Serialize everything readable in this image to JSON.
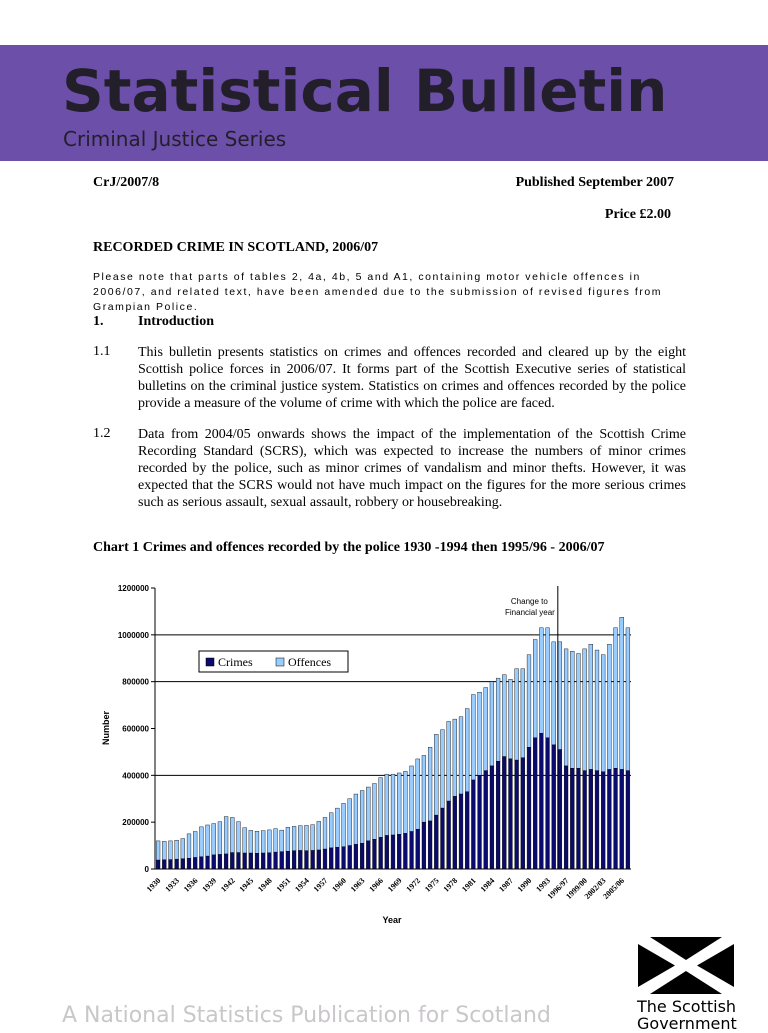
{
  "header": {
    "title": "Statistical Bulletin",
    "subtitle": "Criminal Justice Series",
    "banner_color": "#6b4fa8"
  },
  "meta": {
    "ref": "CrJ/2007/8",
    "published": "Published September 2007",
    "price": "Price £2.00"
  },
  "document": {
    "heading": "RECORDED CRIME IN SCOTLAND, 2006/07",
    "note": "Please note that parts of tables 2, 4a, 4b, 5 and A1, containing motor vehicle offences in 2006/07, and related text, have been amended due to the submission of revised figures from Grampian Police.",
    "section": {
      "number": "1.",
      "title": "Introduction"
    },
    "paragraphs": [
      {
        "number": "1.1",
        "text": "This bulletin presents statistics on crimes and offences recorded and cleared up by the eight Scottish police forces in 2006/07.  It forms part of the Scottish Executive series of statistical bulletins on the criminal justice system.  Statistics on crimes and offences recorded by the police provide a measure of the volume of crime with which the police are faced."
      },
      {
        "number": "1.2",
        "text": "Data from 2004/05 onwards shows the impact of the implementation of the Scottish Crime Recording Standard (SCRS), which was expected to increase the numbers of minor crimes recorded by the police, such as minor crimes of vandalism and minor thefts.  However, it was expected that the SCRS would not have much impact on the figures for the more serious crimes such as serious assault, sexual assault, robbery or housebreaking."
      }
    ],
    "chart_caption": "Chart 1   Crimes and offences recorded by the police 1930 -1994 then 1995/96 - 2006/07"
  },
  "chart_data": {
    "type": "bar",
    "stacked": true,
    "xlabel": "Year",
    "ylabel": "Number",
    "ylim": [
      0,
      1200000
    ],
    "yticks": [
      0,
      200000,
      400000,
      600000,
      800000,
      1000000,
      1200000
    ],
    "gridlines": [
      400000,
      800000,
      1000000
    ],
    "legend_position": "upper-left",
    "annotation": "Change to Financial year",
    "annotation_after": "1994",
    "x_tick_labels": [
      "1930",
      "1933",
      "1936",
      "1939",
      "1942",
      "1945",
      "1948",
      "1951",
      "1954",
      "1957",
      "1960",
      "1963",
      "1966",
      "1969",
      "1972",
      "1975",
      "1978",
      "1981",
      "1984",
      "1987",
      "1990",
      "1993",
      "1996/97",
      "1999/00",
      "2002/03",
      "2005/06"
    ],
    "categories": [
      "1930",
      "1931",
      "1932",
      "1933",
      "1934",
      "1935",
      "1936",
      "1937",
      "1938",
      "1939",
      "1940",
      "1941",
      "1942",
      "1943",
      "1944",
      "1945",
      "1946",
      "1947",
      "1948",
      "1949",
      "1950",
      "1951",
      "1952",
      "1953",
      "1954",
      "1955",
      "1956",
      "1957",
      "1958",
      "1959",
      "1960",
      "1961",
      "1962",
      "1963",
      "1964",
      "1965",
      "1966",
      "1967",
      "1968",
      "1969",
      "1970",
      "1971",
      "1972",
      "1973",
      "1974",
      "1975",
      "1976",
      "1977",
      "1978",
      "1979",
      "1980",
      "1981",
      "1982",
      "1983",
      "1984",
      "1985",
      "1986",
      "1987",
      "1988",
      "1989",
      "1990",
      "1991",
      "1992",
      "1993",
      "1994",
      "1995/96",
      "1996/97",
      "1997/98",
      "1998/99",
      "1999/00",
      "2000/01",
      "2001/02",
      "2002/03",
      "2003/04",
      "2004/05",
      "2005/06",
      "2006/07"
    ],
    "series": [
      {
        "name": "Crimes",
        "color": "#0b0b6e",
        "values": [
          38000,
          39000,
          40000,
          42000,
          44000,
          46000,
          49000,
          52000,
          55000,
          60000,
          62000,
          64000,
          70000,
          70000,
          68000,
          68000,
          67000,
          68000,
          69000,
          72000,
          74000,
          76000,
          78000,
          79000,
          78000,
          79000,
          81000,
          85000,
          90000,
          93000,
          95000,
          100000,
          105000,
          110000,
          120000,
          127000,
          135000,
          143000,
          145000,
          148000,
          152000,
          160000,
          170000,
          200000,
          205000,
          230000,
          260000,
          290000,
          310000,
          320000,
          330000,
          380000,
          400000,
          420000,
          440000,
          460000,
          480000,
          470000,
          465000,
          475000,
          520000,
          560000,
          580000,
          560000,
          530000,
          510000,
          440000,
          430000,
          430000,
          420000,
          425000,
          420000,
          415000,
          425000,
          430000,
          425000,
          420000
        ]
      },
      {
        "name": "Offences",
        "color": "#99ccff",
        "values": [
          82000,
          79000,
          80000,
          81000,
          86000,
          104000,
          111000,
          128000,
          133000,
          134000,
          140000,
          160000,
          150000,
          132000,
          108000,
          97000,
          94000,
          96000,
          98000,
          100000,
          92000,
          102000,
          104000,
          106000,
          108000,
          110000,
          122000,
          135000,
          150000,
          167000,
          185000,
          200000,
          215000,
          225000,
          230000,
          238000,
          255000,
          262000,
          260000,
          262000,
          265000,
          280000,
          300000,
          285000,
          315000,
          345000,
          335000,
          340000,
          330000,
          330000,
          355000,
          365000,
          355000,
          355000,
          360000,
          355000,
          350000,
          340000,
          390000,
          380000,
          395000,
          420000,
          450000,
          470000,
          440000,
          460000,
          500000,
          500000,
          490000,
          520000,
          535000,
          515000,
          500000,
          535000,
          600000,
          650000,
          610000
        ]
      }
    ]
  },
  "footer": {
    "text": "A National Statistics Publication for Scotland",
    "logo_line1": "The Scottish",
    "logo_line2": "Government"
  }
}
